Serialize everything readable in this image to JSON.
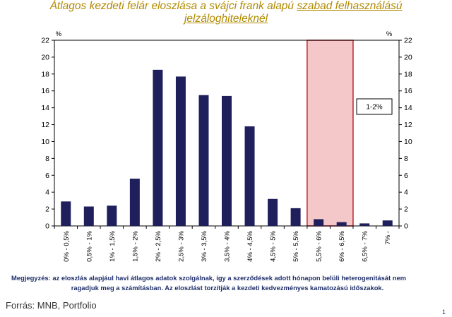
{
  "title": {
    "line1_plain": "Átlagos kezdeti felár eloszlása a svájci frank alapú ",
    "line1_underlined": "szabad felhasználású",
    "line2_underlined": "jelzáloghiteleknél"
  },
  "colors": {
    "title": "#b08a00",
    "bar": "#1f1f5c",
    "highlight_fill": "#f4c7c9",
    "highlight_border": "#c0303a",
    "note_text": "#1f2f6b"
  },
  "chart_data": {
    "type": "bar",
    "categories": [
      "0% - 0,5%",
      "0,5% - 1%",
      "1% - 1,5%",
      "1,5% - 2%",
      "2% - 2,5%",
      "2,5% - 3%",
      "3% - 3,5%",
      "3,5% - 4%",
      "4% - 4,5%",
      "4,5% - 5%",
      "5% - 5,5%",
      "5,5% - 6%",
      "6% - 6,5%",
      "6,5% - 7%",
      "7% -"
    ],
    "values": [
      2.9,
      2.3,
      2.4,
      5.6,
      18.5,
      17.7,
      15.5,
      15.4,
      11.8,
      3.2,
      2.1,
      0.8,
      0.45,
      0.3,
      0.65
    ],
    "yunit_left": "%",
    "yunit_right": "%",
    "ylim": [
      0,
      22
    ],
    "yticks": [
      0,
      2,
      4,
      6,
      8,
      10,
      12,
      14,
      16,
      18,
      20,
      22
    ],
    "grid": false,
    "highlight": {
      "categories": [
        "5,5% - 6%",
        "6% - 6,5%"
      ],
      "label": "1-2%"
    }
  },
  "note": {
    "line1": "Megjegyzés: az eloszlás alapjául havi átlagos adatok szolgálnak, így a szerződések adott hónapon belüli heterogenitását nem",
    "line2": "ragadjuk meg a számításban. Az eloszlást torzítják a kezdeti kedvezményes kamatozású időszakok."
  },
  "source": "Forrás: MNB, Portfolio",
  "page_number": "1"
}
